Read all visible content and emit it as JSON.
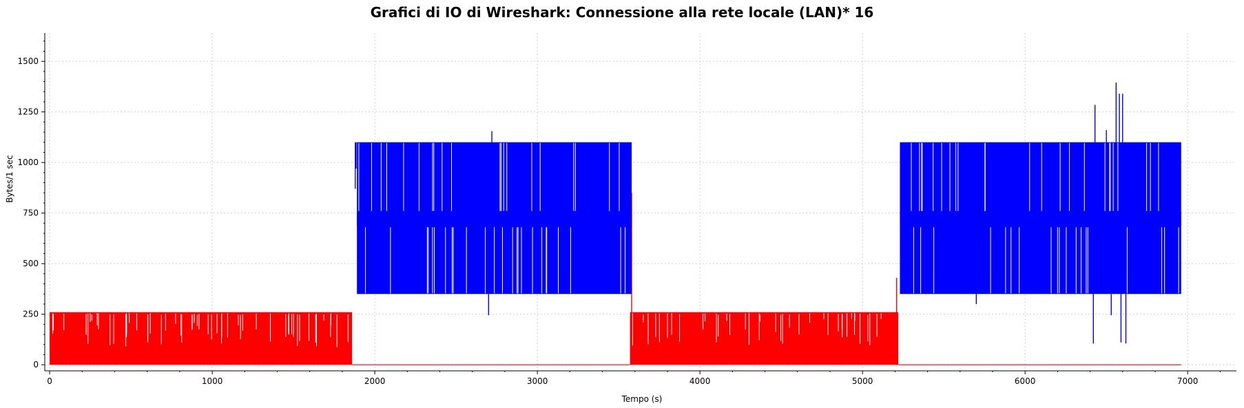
{
  "chart_data": {
    "type": "line",
    "title": "Grafici di IO di Wireshark: Connessione alla rete locale (LAN)* 16",
    "xlabel": "Tempo (s)",
    "ylabel": "Bytes/1 sec",
    "xlim": [
      -30,
      7300
    ],
    "ylim": [
      -30,
      1640
    ],
    "xticks": [
      0,
      1000,
      2000,
      3000,
      4000,
      5000,
      6000,
      7000
    ],
    "yticks": [
      0,
      250,
      500,
      750,
      1000,
      1250,
      1500
    ],
    "grid": true,
    "series": [
      {
        "color": "#ff0000",
        "style": "band",
        "segments": [
          {
            "x_start": 0,
            "x_end": 1860,
            "y_min": 0,
            "y_max": 260
          },
          {
            "x_start": 1860,
            "x_end": 3570,
            "y_min": 0,
            "y_max": 0
          },
          {
            "x_start": 3570,
            "x_end": 5220,
            "y_min": 0,
            "y_max": 260
          },
          {
            "x_start": 5220,
            "x_end": 6960,
            "y_min": 0,
            "y_max": 0
          }
        ],
        "spikes": [
          [
            3580,
            850
          ],
          [
            5210,
            430
          ]
        ]
      },
      {
        "color": "#0000ff",
        "style": "band",
        "segments": [
          {
            "x_start": 1890,
            "x_end": 3580,
            "y_min": 350,
            "y_max": 1100,
            "core": 720
          },
          {
            "x_start": 5230,
            "x_end": 6960,
            "y_min": 350,
            "y_max": 1100,
            "core": 720
          }
        ],
        "spikes": [
          [
            2720,
            1155
          ],
          [
            2700,
            245
          ],
          [
            5700,
            300
          ],
          [
            6430,
            1285
          ],
          [
            6420,
            105
          ],
          [
            6500,
            1160
          ],
          [
            6560,
            1395
          ],
          [
            6580,
            1340
          ],
          [
            6600,
            1340
          ],
          [
            6590,
            110
          ],
          [
            6620,
            105
          ],
          [
            6530,
            245
          ],
          [
            1880,
            870
          ],
          [
            1885,
            970
          ]
        ]
      }
    ]
  }
}
